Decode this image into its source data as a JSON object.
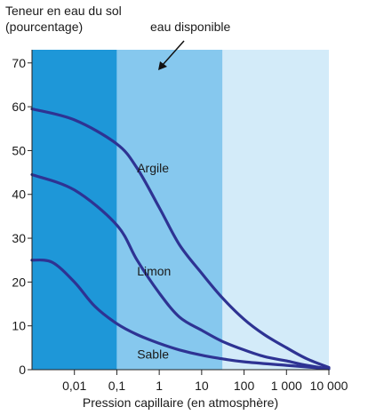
{
  "chart_data": {
    "type": "line",
    "title": "",
    "ylabel_lines": [
      "Teneur en eau du sol",
      "(pourcentage)"
    ],
    "xlabel": "Pression capillaire (en atmosphère)",
    "x_scale": "log",
    "xlim": [
      0.001,
      10000
    ],
    "ylim": [
      0,
      73
    ],
    "x_ticks": [
      {
        "value": 0.01,
        "label": "0,01"
      },
      {
        "value": 0.1,
        "label": "0,1"
      },
      {
        "value": 1,
        "label": "1"
      },
      {
        "value": 10,
        "label": "10"
      },
      {
        "value": 100,
        "label": "100"
      },
      {
        "value": 1000,
        "label": "1 000"
      },
      {
        "value": 10000,
        "label": "10 000"
      }
    ],
    "y_ticks": [
      0,
      10,
      20,
      30,
      40,
      50,
      60,
      70
    ],
    "bands": [
      {
        "from": 0.001,
        "to": 0.1,
        "color": "#1e97d8"
      },
      {
        "from": 0.1,
        "to": 31,
        "color": "#86c8ee"
      },
      {
        "from": 31,
        "to": 10000,
        "color": "#d3ebf9"
      }
    ],
    "annotation": {
      "text": "eau disponible"
    },
    "series_color": "#2e3393",
    "series": [
      {
        "name": "Argile",
        "x": [
          0.001,
          0.01,
          0.1,
          0.3,
          1,
          3,
          10,
          30,
          100,
          300,
          1000,
          3000,
          10000
        ],
        "y": [
          59.5,
          57,
          51.5,
          46,
          37,
          28.5,
          22,
          16.5,
          11.5,
          8,
          5,
          2.5,
          0.5
        ]
      },
      {
        "name": "Limon",
        "x": [
          0.001,
          0.01,
          0.1,
          0.3,
          1,
          3,
          10,
          30,
          100,
          300,
          1000,
          3000,
          10000
        ],
        "y": [
          44.5,
          41,
          33,
          25,
          17.5,
          12,
          9,
          6.5,
          4.5,
          3,
          2,
          1,
          0.2
        ]
      },
      {
        "name": "Sable",
        "x": [
          0.001,
          0.003,
          0.01,
          0.03,
          0.1,
          0.3,
          1,
          3,
          10,
          30,
          100,
          1000,
          10000
        ],
        "y": [
          25,
          24.5,
          20,
          14.5,
          10.5,
          8,
          6,
          4.5,
          3.3,
          2.5,
          1.8,
          1,
          0.2
        ]
      }
    ]
  }
}
